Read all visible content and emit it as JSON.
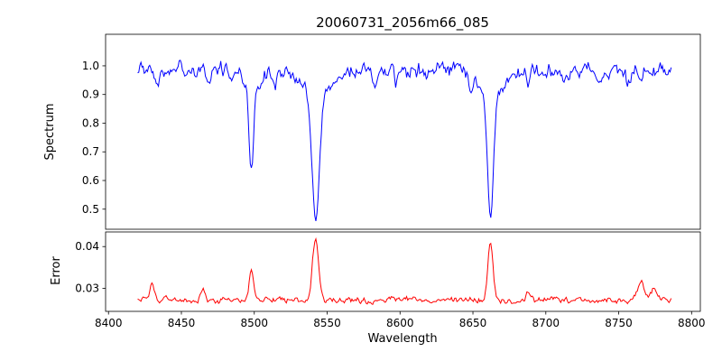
{
  "title": "20060731_2056m66_085",
  "colors": {
    "spectrum_line": "#0000ff",
    "error_line": "#ff0000",
    "axis": "#000000",
    "background": "#ffffff",
    "text": "#000000"
  },
  "chart_data": {
    "type": "line",
    "title": "20060731_2056m66_085",
    "xlabel": "Wavelength",
    "legend": "none",
    "grid": false,
    "xlim": [
      8398,
      8806
    ],
    "x_ticks": [
      {
        "v": 8400,
        "label": "8400"
      },
      {
        "v": 8450,
        "label": "8450"
      },
      {
        "v": 8500,
        "label": "8500"
      },
      {
        "v": 8550,
        "label": "8550"
      },
      {
        "v": 8600,
        "label": "8600"
      },
      {
        "v": 8650,
        "label": "8650"
      },
      {
        "v": 8700,
        "label": "8700"
      },
      {
        "v": 8750,
        "label": "8750"
      },
      {
        "v": 8800,
        "label": "8800"
      }
    ],
    "sampling": {
      "x_start": 8420,
      "x_end": 8786,
      "step": 0.75,
      "seed": 20060731
    },
    "spectrum_panel": {
      "ylabel": "Spectrum",
      "ylim": [
        0.43,
        1.11
      ],
      "y_ticks": [
        {
          "v": 0.5,
          "label": "0.5"
        },
        {
          "v": 0.6,
          "label": "0.6"
        },
        {
          "v": 0.7,
          "label": "0.7"
        },
        {
          "v": 0.8,
          "label": "0.8"
        },
        {
          "v": 0.9,
          "label": "0.9"
        },
        {
          "v": 1.0,
          "label": "1.0"
        }
      ],
      "continuum": 0.985,
      "noise_amp": 0.03,
      "noise_corr": 0.5,
      "wing_frac": 0.18,
      "wing_mult": 4,
      "absorption_lines": [
        {
          "center": 8498.0,
          "depth": 0.36,
          "width": 1.5
        },
        {
          "center": 8542.1,
          "depth": 0.54,
          "width": 2.4
        },
        {
          "center": 8662.1,
          "depth": 0.52,
          "width": 2.0
        },
        {
          "center": 8434.0,
          "depth": 0.05,
          "width": 1.2
        },
        {
          "center": 8468.0,
          "depth": 0.06,
          "width": 1.2
        },
        {
          "center": 8514.0,
          "depth": 0.05,
          "width": 1.2
        },
        {
          "center": 8583.0,
          "depth": 0.04,
          "width": 1.2
        },
        {
          "center": 8598.0,
          "depth": 0.04,
          "width": 1.2
        },
        {
          "center": 8648.0,
          "depth": 0.04,
          "width": 1.2
        },
        {
          "center": 8688.0,
          "depth": 0.06,
          "width": 1.2
        },
        {
          "center": 8713.0,
          "depth": 0.05,
          "width": 1.2
        },
        {
          "center": 8736.0,
          "depth": 0.04,
          "width": 1.2
        },
        {
          "center": 8757.0,
          "depth": 0.05,
          "width": 1.2
        }
      ]
    },
    "error_panel": {
      "ylabel": "Error",
      "ylim": [
        0.0245,
        0.0435
      ],
      "y_ticks": [
        {
          "v": 0.03,
          "label": "0.03"
        },
        {
          "v": 0.04,
          "label": "0.04"
        }
      ],
      "baseline": 0.0272,
      "noise_amp": 0.0008,
      "noise_corr": 0.5,
      "peaks": [
        {
          "center": 8430.0,
          "height": 0.004,
          "width": 1.5
        },
        {
          "center": 8465.0,
          "height": 0.0025,
          "width": 1.5
        },
        {
          "center": 8498.0,
          "height": 0.0065,
          "width": 1.6
        },
        {
          "center": 8542.0,
          "height": 0.015,
          "width": 2.0
        },
        {
          "center": 8662.0,
          "height": 0.014,
          "width": 1.8
        },
        {
          "center": 8688.0,
          "height": 0.002,
          "width": 1.5
        },
        {
          "center": 8765.0,
          "height": 0.0042,
          "width": 2.2
        },
        {
          "center": 8774.0,
          "height": 0.003,
          "width": 1.5
        }
      ]
    }
  }
}
